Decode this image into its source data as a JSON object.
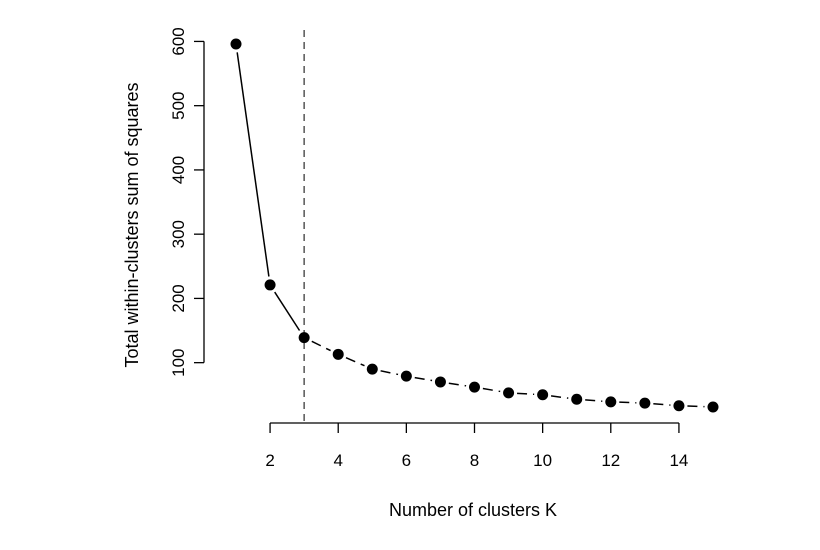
{
  "chart_data": {
    "type": "line",
    "title": "",
    "xlabel": "Number of clusters K",
    "ylabel": "Total within-clusters sum of squares",
    "x": [
      1,
      2,
      3,
      4,
      5,
      6,
      7,
      8,
      9,
      10,
      11,
      12,
      13,
      14,
      15
    ],
    "series": [
      {
        "values": [
          596,
          221,
          139,
          113,
          90,
          79,
          70,
          62,
          53,
          50,
          43,
          39,
          37,
          33,
          31
        ],
        "color": "#000000"
      }
    ],
    "segment_styles": [
      "solid",
      "solid",
      "dashed",
      "dashed",
      "dashed",
      "dashed",
      "dashed",
      "dashed",
      "dashed",
      "dashed",
      "dashed",
      "dashed",
      "dashed",
      "dashed"
    ],
    "xlim": [
      1,
      15
    ],
    "ylim": [
      31,
      596
    ],
    "xticks": [
      "2",
      "4",
      "6",
      "8",
      "10",
      "12",
      "14"
    ],
    "yticks": [
      "100",
      "200",
      "300",
      "400",
      "500",
      "600"
    ],
    "vline": {
      "x": 3,
      "style": "dashed",
      "color": "#555555"
    },
    "grid": false,
    "legend": "none"
  }
}
